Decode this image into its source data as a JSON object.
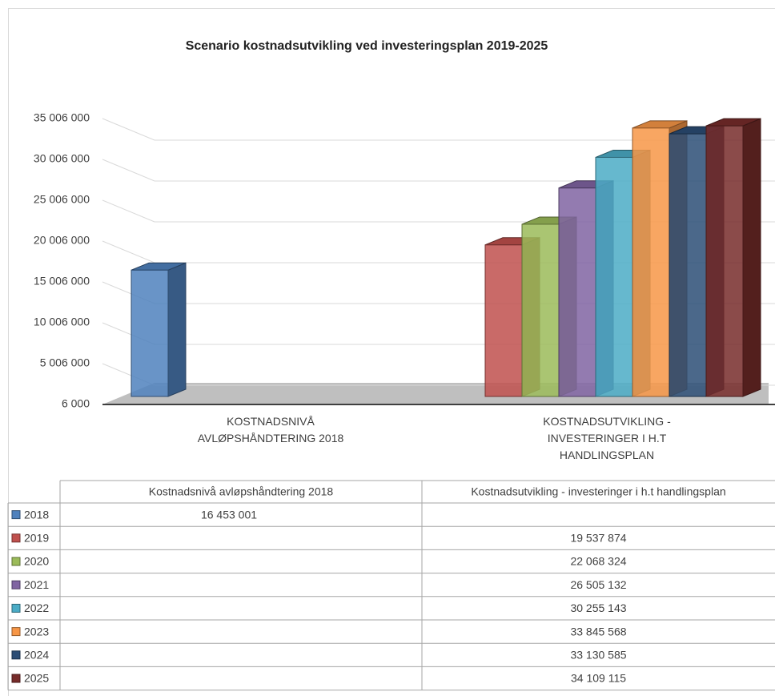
{
  "chart_data": {
    "type": "bar",
    "title": "Scenario kostnadsutvikling  ved investeringsplan 2019-2025",
    "categories": [
      "KOSTNADSNIVÅ AVLØPSHÅNDTERING 2018",
      "KOSTNADSUTVIKLING - INVESTERINGER I H.T HANDLINGSPLAN"
    ],
    "table_headers": [
      "Kostnadsnivå avløpshåndtering 2018",
      "Kostnadsutvikling - investeringer i h.t handlingsplan"
    ],
    "series": [
      {
        "name": "2018",
        "color": "#4f81bd",
        "values": [
          16453001,
          null
        ],
        "value_labels": [
          "16 453 001",
          null
        ]
      },
      {
        "name": "2019",
        "color": "#c0504d",
        "values": [
          null,
          19537874
        ],
        "value_labels": [
          null,
          "19 537 874"
        ]
      },
      {
        "name": "2020",
        "color": "#9bbb59",
        "values": [
          null,
          22068324
        ],
        "value_labels": [
          null,
          "22 068 324"
        ]
      },
      {
        "name": "2021",
        "color": "#8064a2",
        "values": [
          null,
          26505132
        ],
        "value_labels": [
          null,
          "26 505 132"
        ]
      },
      {
        "name": "2022",
        "color": "#4bacc6",
        "values": [
          null,
          30255143
        ],
        "value_labels": [
          null,
          "30 255 143"
        ]
      },
      {
        "name": "2023",
        "color": "#f79646",
        "values": [
          null,
          33845568
        ],
        "value_labels": [
          null,
          "33 845 568"
        ]
      },
      {
        "name": "2024",
        "color": "#2c4d75",
        "values": [
          null,
          33130585
        ],
        "value_labels": [
          null,
          "33 130 585"
        ]
      },
      {
        "name": "2025",
        "color": "#772c2a",
        "values": [
          null,
          34109115
        ],
        "value_labels": [
          null,
          "34 109 115"
        ]
      }
    ],
    "ylim": [
      6000,
      35006000
    ],
    "yticks": [
      {
        "value": 6000,
        "label": "6 000"
      },
      {
        "value": 5006000,
        "label": "5 006 000"
      },
      {
        "value": 10006000,
        "label": "10 006 000"
      },
      {
        "value": 15006000,
        "label": "15 006 000"
      },
      {
        "value": 20006000,
        "label": "20 006 000"
      },
      {
        "value": 25006000,
        "label": "25 006 000"
      },
      {
        "value": 30006000,
        "label": "30 006 000"
      },
      {
        "value": 35006000,
        "label": "35 006 000"
      }
    ],
    "grid": true
  }
}
